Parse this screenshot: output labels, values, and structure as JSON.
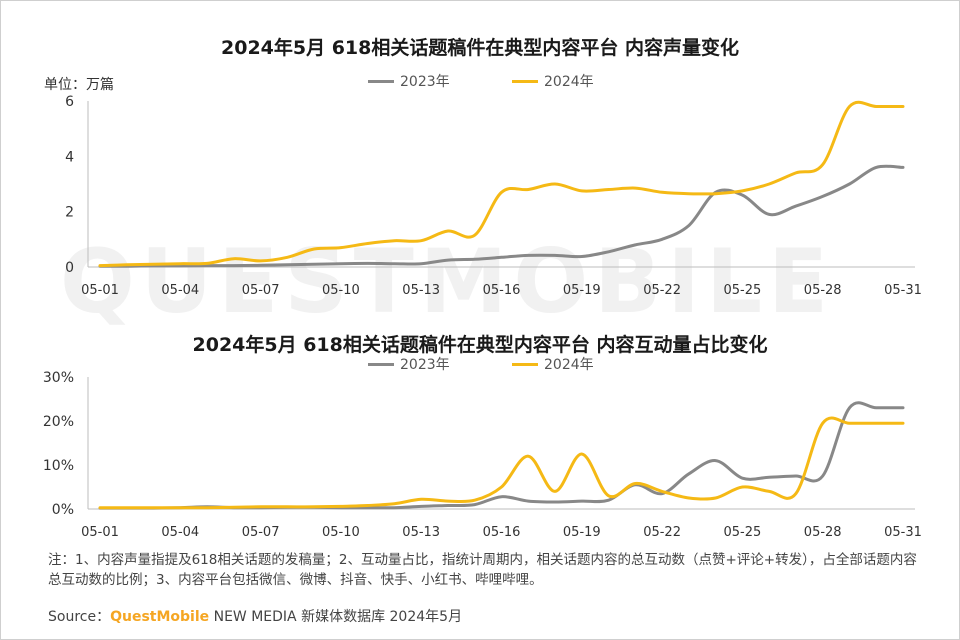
{
  "chart_data": [
    {
      "type": "line",
      "title": "2024年5月 618相关话题稿件在典型内容平台 内容声量变化",
      "unit": "单位：万篇",
      "ylim": [
        0,
        6
      ],
      "yticks": [
        "0",
        "2",
        "4",
        "6"
      ],
      "ytick_values": [
        0,
        2,
        4,
        6
      ],
      "categories": [
        "05-01",
        "05-02",
        "05-03",
        "05-04",
        "05-05",
        "05-06",
        "05-07",
        "05-08",
        "05-09",
        "05-10",
        "05-11",
        "05-12",
        "05-13",
        "05-14",
        "05-15",
        "05-16",
        "05-17",
        "05-18",
        "05-19",
        "05-20",
        "05-21",
        "05-22",
        "05-23",
        "05-24",
        "05-25",
        "05-26",
        "05-27",
        "05-28",
        "05-29",
        "05-30",
        "05-31"
      ],
      "xtick_labels": [
        "05-01",
        "05-04",
        "05-07",
        "05-10",
        "05-13",
        "05-16",
        "05-19",
        "05-22",
        "05-25",
        "05-28",
        "05-31"
      ],
      "legend": "top",
      "series": [
        {
          "name": "2023年",
          "color": "#888888",
          "values": [
            0.03,
            0.03,
            0.04,
            0.04,
            0.05,
            0.05,
            0.06,
            0.08,
            0.1,
            0.12,
            0.13,
            0.12,
            0.12,
            0.25,
            0.28,
            0.35,
            0.42,
            0.42,
            0.38,
            0.55,
            0.8,
            1.0,
            1.5,
            2.7,
            2.6,
            1.9,
            2.2,
            2.55,
            3.0,
            3.6,
            3.6
          ]
        },
        {
          "name": "2024年",
          "color": "#F5B915",
          "values": [
            0.05,
            0.08,
            0.1,
            0.12,
            0.13,
            0.3,
            0.22,
            0.35,
            0.65,
            0.7,
            0.85,
            0.95,
            0.95,
            1.3,
            1.15,
            2.7,
            2.8,
            3.0,
            2.75,
            2.8,
            2.85,
            2.7,
            2.65,
            2.65,
            2.75,
            3.0,
            3.4,
            3.7,
            5.8,
            5.8,
            5.8
          ]
        }
      ]
    },
    {
      "type": "line",
      "title": "2024年5月 618相关话题稿件在典型内容平台 内容互动量占比变化",
      "ylim": [
        0,
        30
      ],
      "yticks": [
        "0%",
        "10%",
        "20%",
        "30%"
      ],
      "ytick_values": [
        0,
        10,
        20,
        30
      ],
      "categories": [
        "05-01",
        "05-02",
        "05-03",
        "05-04",
        "05-05",
        "05-06",
        "05-07",
        "05-08",
        "05-09",
        "05-10",
        "05-11",
        "05-12",
        "05-13",
        "05-14",
        "05-15",
        "05-16",
        "05-17",
        "05-18",
        "05-19",
        "05-20",
        "05-21",
        "05-22",
        "05-23",
        "05-24",
        "05-25",
        "05-26",
        "05-27",
        "05-28",
        "05-29",
        "05-30",
        "05-31"
      ],
      "xtick_labels": [
        "05-01",
        "05-04",
        "05-07",
        "05-10",
        "05-13",
        "05-16",
        "05-19",
        "05-22",
        "05-25",
        "05-28",
        "05-31"
      ],
      "legend": "top",
      "series": [
        {
          "name": "2023年",
          "color": "#888888",
          "values": [
            0.2,
            0.2,
            0.2,
            0.3,
            0.5,
            0.3,
            0.3,
            0.4,
            0.4,
            0.3,
            0.3,
            0.3,
            0.6,
            0.8,
            1.0,
            2.8,
            1.8,
            1.6,
            1.8,
            2.0,
            5.5,
            3.5,
            8.0,
            11.0,
            7.0,
            7.2,
            7.5,
            7.5,
            23.0,
            23.0,
            23.0
          ]
        },
        {
          "name": "2024年",
          "color": "#F5B915",
          "values": [
            0.3,
            0.3,
            0.3,
            0.3,
            0.3,
            0.4,
            0.5,
            0.5,
            0.5,
            0.6,
            0.8,
            1.2,
            2.2,
            1.8,
            2.0,
            5.0,
            12.0,
            4.0,
            12.5,
            3.0,
            5.8,
            4.0,
            2.5,
            2.5,
            5.0,
            4.0,
            3.5,
            19.5,
            19.5,
            19.5,
            19.5
          ]
        }
      ]
    }
  ],
  "note": "注：1、内容声量指提及618相关话题的发稿量；2、互动量占比，指统计周期内，相关话题内容的总互动数（点赞+评论+转发），占全部话题内容总互动数的比例；3、内容平台包括微信、微博、抖音、快手、小红书、哔哩哔哩。",
  "source_prefix": "Source：",
  "source_brand": "QuestMobile",
  "source_suffix": " NEW MEDIA 新媒体数据库 2024年5月",
  "watermark": "QUESTMOBILE"
}
